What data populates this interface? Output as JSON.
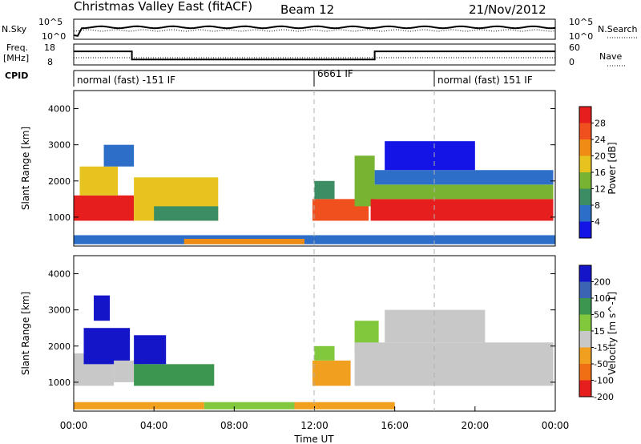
{
  "header": {
    "station": "Christmas Valley East (fitACF)",
    "beam": "Beam 12",
    "date": "21/Nov/2012"
  },
  "status_panels": {
    "nsky_label": "N.Sky",
    "nsearch_label": "N.Search",
    "freq_label_1": "Freq.",
    "freq_label_2": "[MHz]",
    "nave_label": "Nave",
    "cpid_label": "CPID",
    "noise_left_ticks": [
      "10^5",
      "10^0"
    ],
    "noise_right_ticks": [
      "10^5",
      "10^0"
    ],
    "freq_left_ticks": [
      "18",
      "8"
    ],
    "freq_right_ticks": [
      "60",
      "0"
    ],
    "cpid_segments": [
      {
        "label": "normal (fast) -151 IF",
        "start_hour": 0,
        "end_hour": 12
      },
      {
        "label": "6661 IF",
        "start_hour": 12,
        "end_hour": 18
      },
      {
        "label": "normal (fast) 151 IF",
        "start_hour": 18,
        "end_hour": 24
      }
    ],
    "frequency_steps": [
      {
        "start_hour": 0,
        "end_hour": 2.9,
        "mhz": 14.5
      },
      {
        "start_hour": 2.9,
        "end_hour": 15.0,
        "mhz": 10.6
      },
      {
        "start_hour": 15.0,
        "end_hour": 24,
        "mhz": 14.5
      }
    ]
  },
  "chart_data": [
    {
      "type": "heatmap",
      "name": "power",
      "xlabel": "",
      "ylabel": "Slant Range [km]",
      "xlim": [
        0,
        24
      ],
      "ylim": [
        200,
        4500
      ],
      "yticks": [
        "1000",
        "2000",
        "3000",
        "4000"
      ],
      "colorbar": {
        "label": "Power [dB]",
        "ticks": [
          "4",
          "8",
          "12",
          "16",
          "20",
          "24",
          "28"
        ],
        "colors": [
          "#1414e6",
          "#2d6ec8",
          "#3c8c64",
          "#78b432",
          "#e6c31e",
          "#f08c14",
          "#f0501e",
          "#e61e1e"
        ]
      },
      "regions": [
        {
          "t0": 0.0,
          "t1": 3.0,
          "r0": 900,
          "r1": 1600,
          "level": 7
        },
        {
          "t0": 0.3,
          "t1": 2.2,
          "r0": 1600,
          "r1": 2400,
          "level": 4
        },
        {
          "t0": 1.5,
          "t1": 3.0,
          "r0": 2400,
          "r1": 3000,
          "level": 1
        },
        {
          "t0": 3.0,
          "t1": 7.2,
          "r0": 900,
          "r1": 2100,
          "level": 4
        },
        {
          "t0": 4.0,
          "t1": 7.2,
          "r0": 900,
          "r1": 1300,
          "level": 2
        },
        {
          "t0": 11.9,
          "t1": 14.7,
          "r0": 900,
          "r1": 1500,
          "level": 6
        },
        {
          "t0": 12.0,
          "t1": 13.0,
          "r0": 1500,
          "r1": 2000,
          "level": 2
        },
        {
          "t0": 14.0,
          "t1": 15.0,
          "r0": 1300,
          "r1": 2700,
          "level": 3
        },
        {
          "t0": 14.8,
          "t1": 23.9,
          "r0": 900,
          "r1": 1500,
          "level": 7
        },
        {
          "t0": 14.8,
          "t1": 23.9,
          "r0": 1500,
          "r1": 1900,
          "level": 3
        },
        {
          "t0": 15.0,
          "t1": 23.9,
          "r0": 1900,
          "r1": 2300,
          "level": 1
        },
        {
          "t0": 15.5,
          "t1": 20.0,
          "r0": 2300,
          "r1": 3100,
          "level": 0
        },
        {
          "t0": 0.0,
          "t1": 24.0,
          "r0": 250,
          "r1": 500,
          "level": 1
        },
        {
          "t0": 5.5,
          "t1": 11.5,
          "r0": 250,
          "r1": 400,
          "level": 5
        }
      ]
    },
    {
      "type": "heatmap",
      "name": "velocity",
      "xlabel": "Time UT",
      "ylabel": "Slant Range [km]",
      "xlim": [
        0,
        24
      ],
      "ylim": [
        200,
        4500
      ],
      "xticks": [
        "00:00",
        "04:00",
        "08:00",
        "12:00",
        "16:00",
        "20:00",
        "00:00"
      ],
      "yticks": [
        "1000",
        "2000",
        "3000",
        "4000"
      ],
      "colorbar": {
        "label": "Velocity [m s^-1]",
        "ticks": [
          "200",
          "100",
          "50",
          "15",
          "-15",
          "-50",
          "-100",
          "-200"
        ],
        "colors": [
          "#1414c8",
          "#3c64b4",
          "#3c9650",
          "#82c83c",
          "#c8c8c8",
          "#f0a01e",
          "#f06e14",
          "#e61e1e"
        ]
      },
      "regions": [
        {
          "t0": 0.0,
          "t1": 2.0,
          "r0": 900,
          "r1": 1800,
          "level": 4
        },
        {
          "t0": 0.5,
          "t1": 2.8,
          "r0": 1500,
          "r1": 2500,
          "level": 0
        },
        {
          "t0": 1.0,
          "t1": 1.8,
          "r0": 2700,
          "r1": 3400,
          "level": 0
        },
        {
          "t0": 2.0,
          "t1": 3.5,
          "r0": 1000,
          "r1": 1600,
          "level": 4
        },
        {
          "t0": 3.0,
          "t1": 4.6,
          "r0": 1500,
          "r1": 2300,
          "level": 0
        },
        {
          "t0": 3.0,
          "t1": 7.0,
          "r0": 900,
          "r1": 1500,
          "level": 2
        },
        {
          "t0": 6.5,
          "t1": 11.0,
          "r0": 250,
          "r1": 450,
          "level": 3
        },
        {
          "t0": 0.0,
          "t1": 6.5,
          "r0": 250,
          "r1": 450,
          "level": 5
        },
        {
          "t0": 11.9,
          "t1": 13.8,
          "r0": 900,
          "r1": 1600,
          "level": 5
        },
        {
          "t0": 11.0,
          "t1": 16.0,
          "r0": 250,
          "r1": 450,
          "level": 5
        },
        {
          "t0": 14.0,
          "t1": 15.2,
          "r0": 1800,
          "r1": 2700,
          "level": 3
        },
        {
          "t0": 14.0,
          "t1": 23.9,
          "r0": 900,
          "r1": 2100,
          "level": 4
        },
        {
          "t0": 15.5,
          "t1": 20.5,
          "r0": 2100,
          "r1": 3000,
          "level": 4
        },
        {
          "t0": 12.0,
          "t1": 13.0,
          "r0": 1600,
          "r1": 2000,
          "level": 3
        }
      ]
    }
  ]
}
